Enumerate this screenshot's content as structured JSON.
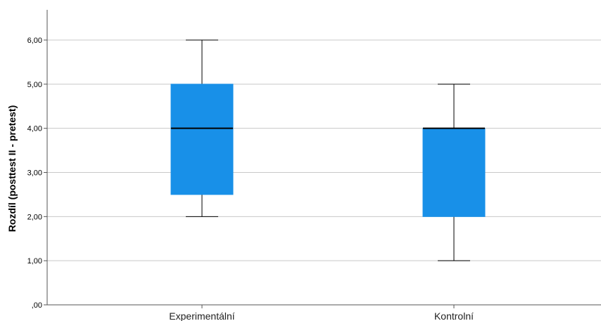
{
  "chart_data": {
    "type": "boxplot",
    "title": "",
    "xlabel": "",
    "ylabel": "Rozdíl (posttest II - pretest)",
    "ylim": [
      0,
      6.6
    ],
    "yticks": [
      0,
      1,
      2,
      3,
      4,
      5,
      6
    ],
    "ytick_labels": [
      ",00",
      "1,00",
      "2,00",
      "3,00",
      "4,00",
      "5,00",
      "6,00"
    ],
    "grid": true,
    "box_color": "#1890e8",
    "categories": [
      "Experimentální",
      "Kontrolní"
    ],
    "boxes": [
      {
        "name": "Experimentální",
        "min": 2,
        "q1": 2.5,
        "median": 4,
        "q3": 5,
        "max": 6
      },
      {
        "name": "Kontrolní",
        "min": 1,
        "q1": 2,
        "median": 4,
        "q3": 4,
        "max": 5
      }
    ]
  }
}
